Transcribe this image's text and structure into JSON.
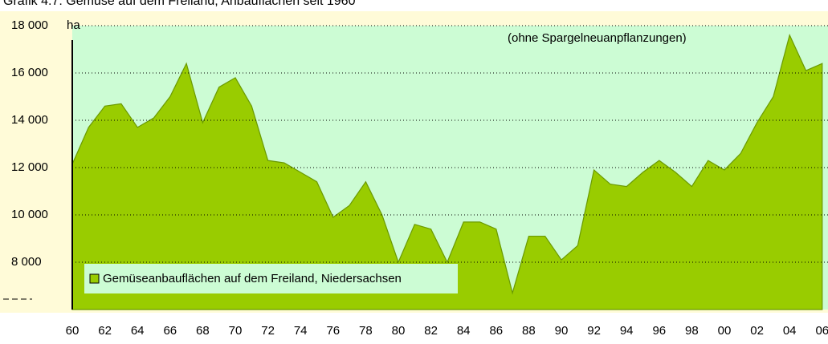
{
  "chart_data": {
    "type": "area",
    "title": "Grafik 4.7: Gemüse auf dem Freiland, Anbauflächen seit 1960",
    "annotation": "(ohne Spargelneuanpflanzungen)",
    "y_unit": "ha",
    "categories": [
      "60",
      null,
      "62",
      null,
      "64",
      null,
      "66",
      null,
      "68",
      null,
      "70",
      null,
      "72",
      null,
      "74",
      null,
      "76",
      null,
      "78",
      null,
      "80",
      null,
      "82",
      null,
      "84",
      null,
      "86",
      null,
      "88",
      null,
      "90",
      null,
      "92",
      null,
      "94",
      null,
      "96",
      null,
      "98",
      null,
      "00",
      null,
      "02",
      null,
      "04",
      null,
      "06"
    ],
    "series": [
      {
        "name": "Gemüseanbauflächen auf dem Freiland, Niedersachsen",
        "color": "#99cc00",
        "values": [
          12150,
          13700,
          14600,
          14700,
          13700,
          14100,
          15000,
          16400,
          13900,
          15400,
          15800,
          14600,
          12300,
          12200,
          11800,
          11400,
          9900,
          10400,
          11400,
          10000,
          8000,
          9600,
          9400,
          8000,
          9700,
          9700,
          9400,
          6700,
          9100,
          9100,
          8100,
          8700,
          11900,
          11300,
          11200,
          11800,
          12300,
          11800,
          11200,
          12300,
          11900,
          12600,
          13900,
          15000,
          17600,
          16100,
          16400
        ]
      }
    ],
    "ylim": [
      6000,
      18000
    ],
    "yticks": [
      {
        "value": 8000,
        "label": "8 000"
      },
      {
        "value": 10000,
        "label": "10 000"
      },
      {
        "value": 12000,
        "label": "12 000"
      },
      {
        "value": 14000,
        "label": "14 000"
      },
      {
        "value": 16000,
        "label": "16 000"
      },
      {
        "value": 18000,
        "label": "18 000"
      }
    ],
    "grid": true,
    "legend": "lower left"
  }
}
